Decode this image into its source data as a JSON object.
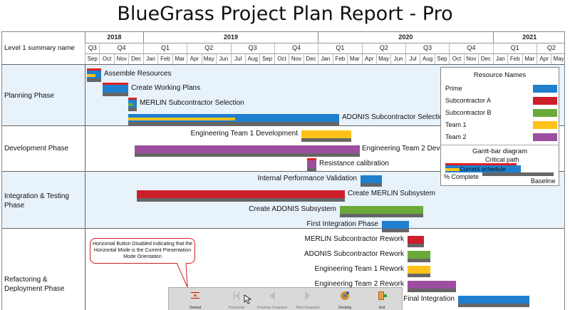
{
  "title": "BlueGrass Project Plan Report - Pro",
  "header": {
    "level_label": "Level 1 summary name",
    "years": [
      "2018",
      "2019",
      "2020",
      "2021"
    ],
    "quarters": [
      "Q3",
      "Q4",
      "Q1",
      "Q2",
      "Q3",
      "Q4",
      "Q1",
      "Q2",
      "Q3",
      "Q4",
      "Q1",
      "Q2"
    ],
    "months": [
      "Sep",
      "Oct",
      "Nov",
      "Dec",
      "Jan",
      "Feb",
      "Mar",
      "Apr",
      "May",
      "Jun",
      "Jul",
      "Aug",
      "Sep",
      "Oct",
      "Nov",
      "Dec",
      "Jan",
      "Feb",
      "Mar",
      "Apr",
      "May",
      "Jun",
      "Jul",
      "Aug",
      "Sep",
      "Oct",
      "Nov",
      "Dec",
      "Jan",
      "Feb",
      "Mar",
      "Apr",
      "May"
    ]
  },
  "phases": [
    {
      "name": "Planning Phase"
    },
    {
      "name": "Development Phase"
    },
    {
      "name": "Integration & Testing Phase"
    },
    {
      "name": "Refactoring & Deployment Phase"
    }
  ],
  "tasks": [
    {
      "label": "Assemble Resources",
      "resource": "Prime",
      "secondary": "Team 1",
      "critical": true
    },
    {
      "label": "Create Working Plans",
      "resource": "Prime",
      "critical": true
    },
    {
      "label": "MERLIN Subcontractor Selection",
      "resource": "Prime",
      "secondary": "Subcontractor B",
      "critical": true
    },
    {
      "label": "ADONIS Subcontractor Selection",
      "resource": "Prime",
      "secondary": "Team 1"
    },
    {
      "label": "Engineering Team 1 Development",
      "resource": "Team 1"
    },
    {
      "label": "Engineering Team 2 Development",
      "resource": "Team 2"
    },
    {
      "label": "Resistance calibration",
      "resource": "Team 2",
      "critical": true
    },
    {
      "label": "Internal Performance Validation",
      "resource": "Prime"
    },
    {
      "label": "Create MERLIN Subsystem",
      "resource": "Subcontractor A"
    },
    {
      "label": "Create ADONIS Subsystem",
      "resource": "Subcontractor B"
    },
    {
      "label": "First Integration Phase",
      "resource": "Prime"
    },
    {
      "label": "MERLIN Subcontractor Rework",
      "resource": "Subcontractor A"
    },
    {
      "label": "ADONIS Subcontractor Rework",
      "resource": "Subcontractor B"
    },
    {
      "label": "Engineering Team 1 Rework",
      "resource": "Team 1"
    },
    {
      "label": "Engineering Team 2 Rework",
      "resource": "Team 2"
    },
    {
      "label": "Final Integration",
      "resource": "Prime"
    }
  ],
  "legend": {
    "title": "Resource Names",
    "resources": [
      {
        "name": "Prime",
        "color": "#1f7fcf"
      },
      {
        "name": "Subcontractor A",
        "color": "#cc1f2a"
      },
      {
        "name": "Subcontractor B",
        "color": "#6aaa3a"
      },
      {
        "name": "Team 1",
        "color": "#ffc21a"
      },
      {
        "name": "Team 2",
        "color": "#9b4f9e"
      }
    ],
    "gantt_title": "Gantt-bar diagram",
    "critical_path": "Critical path",
    "current_schedule": "Current schedule",
    "percent_complete": "% Complete",
    "baseline": "Baseline"
  },
  "colors": {
    "critical": "#e02020",
    "baseline": "#666666",
    "phase_bg_alt": "#e8f2fa"
  },
  "callout": "Horizontal Button Disabled Indicating that the Horizontal Mode is the Current Presentation Mode Orientation",
  "toolbar": {
    "buttons": [
      {
        "label": "Vertical",
        "icon": "vertical-icon"
      },
      {
        "label": "Horizontal",
        "icon": "horizontal-icon"
      },
      {
        "label": "Previous Snapshot",
        "icon": "previous-icon"
      },
      {
        "label": "Next Snapshot",
        "icon": "next-icon"
      },
      {
        "label": "Docking",
        "icon": "gear-icon"
      },
      {
        "label": "Exit",
        "icon": "exit-icon"
      }
    ]
  }
}
